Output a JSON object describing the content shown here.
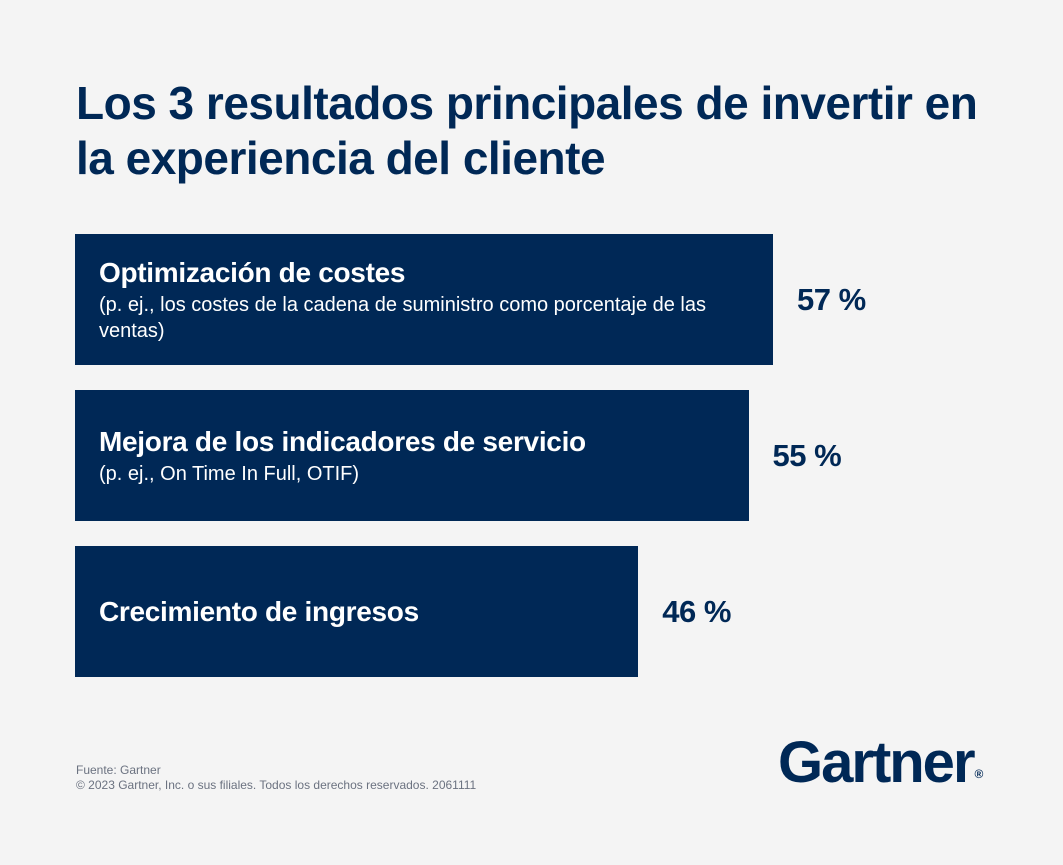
{
  "title": "Los 3 resultados principales de invertir en la experiencia del cliente",
  "chart_data": {
    "type": "bar",
    "orientation": "horizontal",
    "title": "Los 3 resultados principales de invertir en la experiencia del cliente",
    "categories": [
      "Optimización de costes",
      "Mejora de los indicadores de servicio",
      "Crecimiento de ingresos"
    ],
    "subtitles": [
      "(p. ej., los costes de la cadena de suministro como porcentaje de las ventas)",
      " (p. ej., On Time In Full, OTIF)",
      ""
    ],
    "values": [
      57,
      55,
      46
    ],
    "value_labels": [
      "57 %",
      "55 %",
      "46 %"
    ],
    "unit": "%",
    "grid": false,
    "bar_color": "#002856"
  },
  "footer": {
    "source": "Fuente: Gartner",
    "copyright": "© 2023 Gartner, Inc. o sus filiales. Todos los derechos reservados. 2061111"
  },
  "logo": {
    "text": "Gartner",
    "mark": "®"
  },
  "colors": {
    "background": "#f4f4f4",
    "navy": "#002856",
    "text_white": "#ffffff"
  }
}
